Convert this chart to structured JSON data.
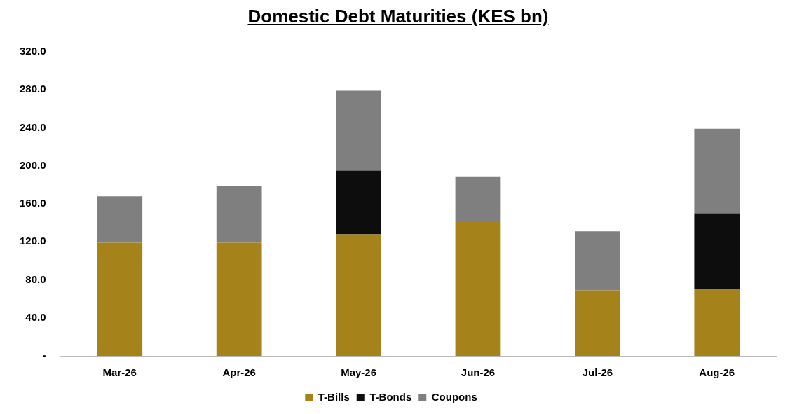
{
  "chart_data": {
    "type": "bar",
    "title": "Domestic Debt Maturities (KES bn)",
    "categories": [
      "Mar-26",
      "Apr-26",
      "May-26",
      "Jun-26",
      "Jul-26",
      "Aug-26"
    ],
    "series": [
      {
        "name": "T-Bills",
        "color": "#a6821a",
        "values": [
          119,
          119,
          128,
          142,
          69,
          70
        ]
      },
      {
        "name": "T-Bonds",
        "color": "#0d0d0d",
        "values": [
          0,
          0,
          67,
          0,
          0,
          80
        ]
      },
      {
        "name": "Coupons",
        "color": "#7f7f7f",
        "values": [
          49,
          60,
          84,
          47,
          62,
          89
        ]
      }
    ],
    "stacked": true,
    "ylim": [
      0,
      320
    ],
    "yticks": [
      {
        "value": 0,
        "label": "-"
      },
      {
        "value": 40,
        "label": "40.0"
      },
      {
        "value": 80,
        "label": "80.0"
      },
      {
        "value": 120,
        "label": "120.0"
      },
      {
        "value": 160,
        "label": "160.0"
      },
      {
        "value": 200,
        "label": "200.0"
      },
      {
        "value": 240,
        "label": "240.0"
      },
      {
        "value": 280,
        "label": "280.0"
      },
      {
        "value": 320,
        "label": "320.0"
      }
    ],
    "grid": false,
    "legend": "bottom"
  }
}
